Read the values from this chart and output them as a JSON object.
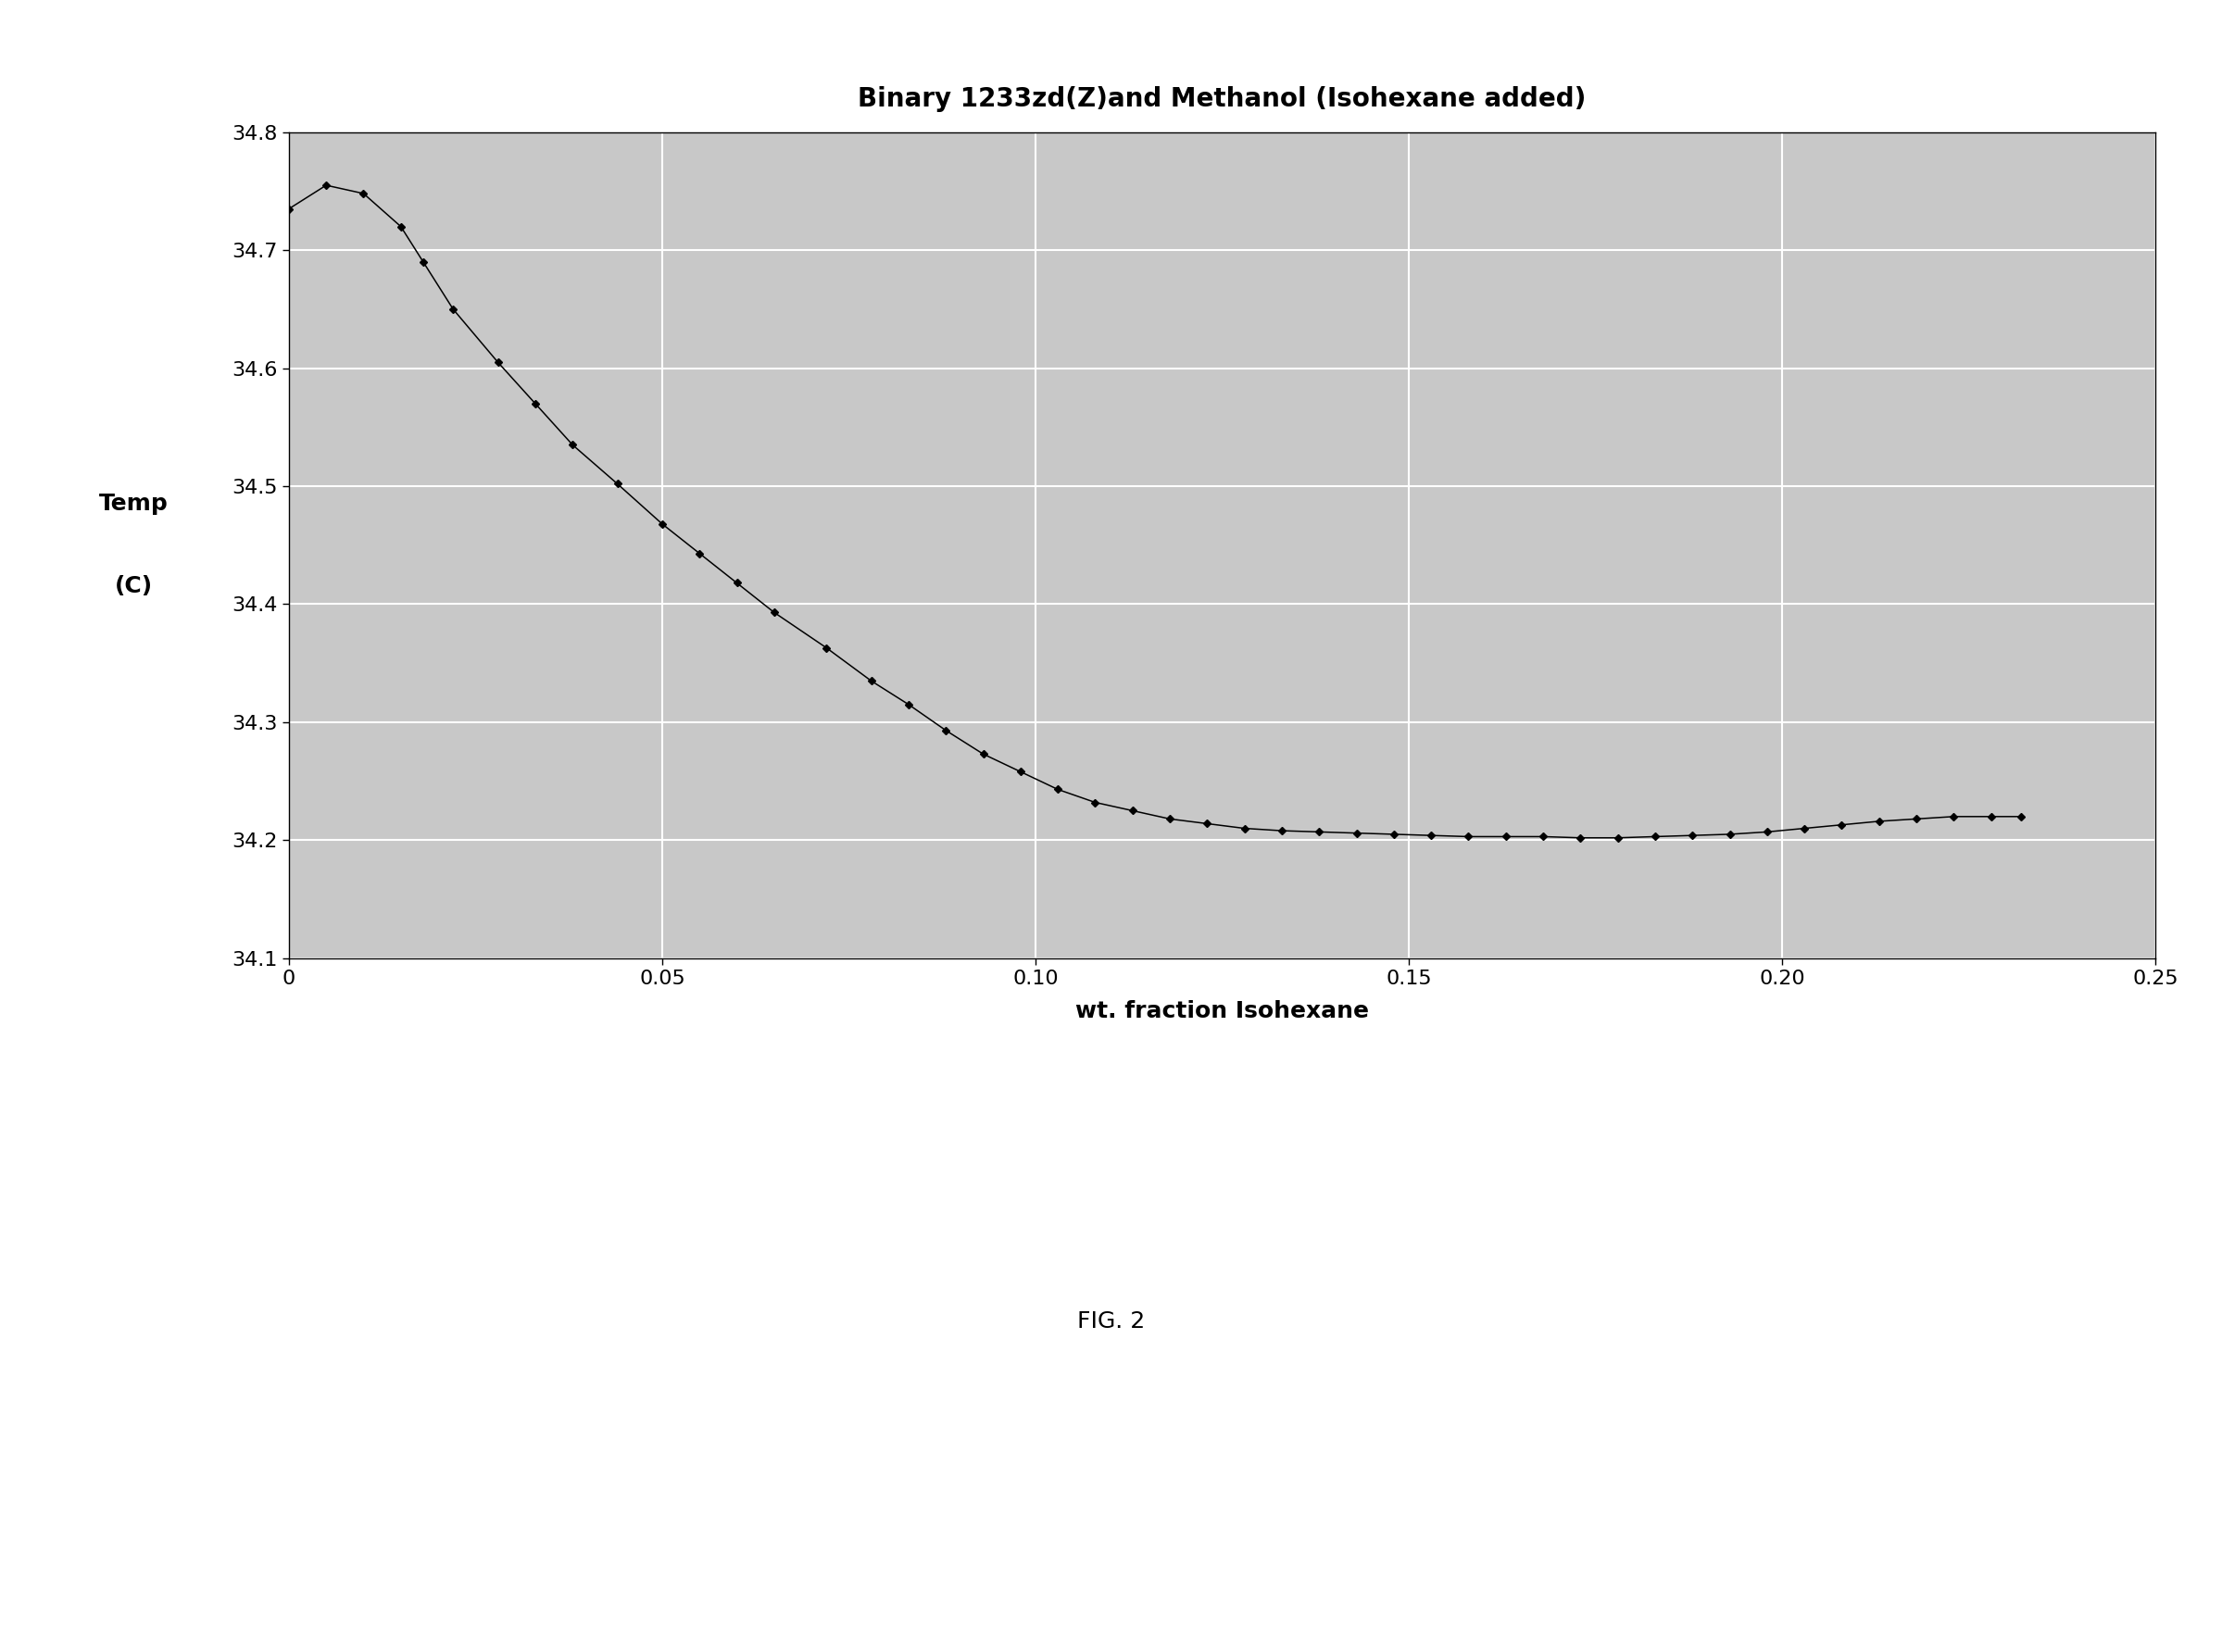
{
  "title": "Binary 1233zd(Z)and Methanol (Isohexane added)",
  "xlabel": "wt. fraction Isohexane",
  "ylabel_line1": "Temp",
  "ylabel_line2": "(C)",
  "xlim": [
    0,
    0.25
  ],
  "ylim": [
    34.1,
    34.8
  ],
  "yticks": [
    34.1,
    34.2,
    34.3,
    34.4,
    34.5,
    34.6,
    34.7,
    34.8
  ],
  "xticks": [
    0,
    0.05,
    0.1,
    0.15,
    0.2,
    0.25
  ],
  "fig_caption": "FIG. 2",
  "x": [
    0.0,
    0.005,
    0.01,
    0.015,
    0.018,
    0.022,
    0.028,
    0.033,
    0.038,
    0.044,
    0.05,
    0.055,
    0.06,
    0.065,
    0.072,
    0.078,
    0.083,
    0.088,
    0.093,
    0.098,
    0.103,
    0.108,
    0.113,
    0.118,
    0.123,
    0.128,
    0.133,
    0.138,
    0.143,
    0.148,
    0.153,
    0.158,
    0.163,
    0.168,
    0.173,
    0.178,
    0.183,
    0.188,
    0.193,
    0.198,
    0.203,
    0.208,
    0.213,
    0.218,
    0.223,
    0.228,
    0.232
  ],
  "y": [
    34.735,
    34.755,
    34.748,
    34.72,
    34.69,
    34.65,
    34.605,
    34.57,
    34.535,
    34.502,
    34.468,
    34.443,
    34.418,
    34.393,
    34.363,
    34.335,
    34.315,
    34.293,
    34.273,
    34.258,
    34.243,
    34.232,
    34.225,
    34.218,
    34.214,
    34.21,
    34.208,
    34.207,
    34.206,
    34.205,
    34.204,
    34.203,
    34.203,
    34.203,
    34.202,
    34.202,
    34.203,
    34.204,
    34.205,
    34.207,
    34.21,
    34.213,
    34.216,
    34.218,
    34.22,
    34.22,
    34.22
  ],
  "line_color": "#000000",
  "marker": "D",
  "markersize": 4,
  "linewidth": 1.1,
  "grid_color": "#ffffff",
  "title_fontsize": 20,
  "label_fontsize": 18,
  "tick_fontsize": 16,
  "caption_fontsize": 18
}
